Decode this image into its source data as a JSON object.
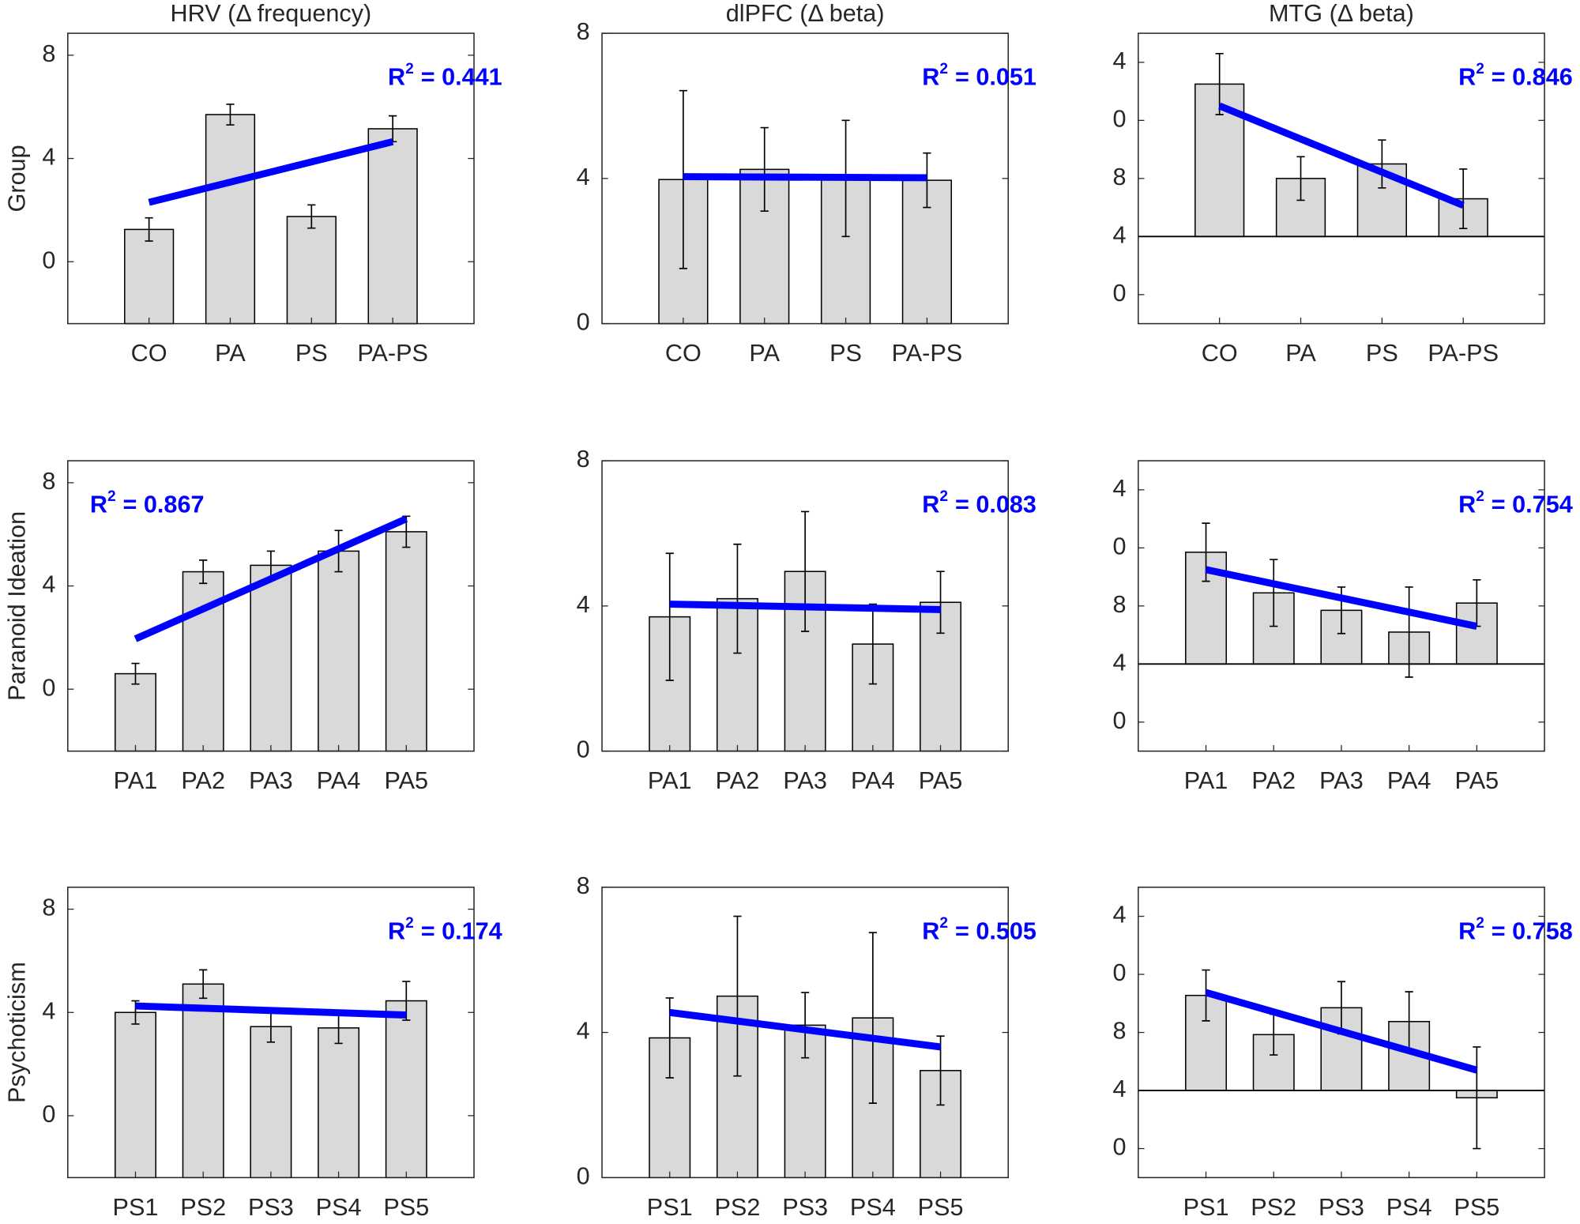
{
  "chart_data": [
    {
      "type": "bar",
      "title": "HRV (Δ frequency)",
      "ylabel": "Group",
      "categories": [
        "CO",
        "PA",
        "PS",
        "PA-PS"
      ],
      "values": [
        1.25,
        5.7,
        1.75,
        5.15
      ],
      "errors": [
        0.45,
        0.4,
        0.45,
        0.5
      ],
      "trend": [
        2.3,
        4.65
      ],
      "annotation": {
        "base": "R",
        "sup": "2",
        "rest": "= 0.441"
      },
      "annotation_loc": "upper right",
      "ylim": [
        -2.4,
        8.85
      ],
      "yticks": [
        0,
        4,
        8
      ],
      "color": "#d9d9d9",
      "line_color": "#0000ff"
    },
    {
      "type": "bar",
      "title": "dlPFC (Δ beta)",
      "categories": [
        "CO",
        "PA",
        "PS",
        "PA-PS"
      ],
      "values": [
        3.97,
        4.25,
        4.0,
        3.95
      ],
      "errors": [
        2.45,
        1.15,
        1.6,
        0.75
      ],
      "trend": [
        4.05,
        4.02
      ],
      "annotation": {
        "base": "R",
        "sup": "2",
        "rest": "= 0.051"
      },
      "annotation_loc": "upper right",
      "ylim": [
        0,
        8
      ],
      "yticks": [
        0,
        4,
        8
      ],
      "color": "#d9d9d9",
      "line_color": "#0000ff"
    },
    {
      "type": "bar",
      "title": "MTG (Δ beta)",
      "categories": [
        "CO",
        "PA",
        "PS",
        "PA-PS"
      ],
      "values": [
        14.5,
        8,
        9,
        6.6
      ],
      "errors": [
        2.1,
        1.5,
        1.65,
        2.05
      ],
      "trend": [
        13.0,
        6.15
      ],
      "annotation": {
        "base": "R",
        "sup": "2",
        "rest": "= 0.846"
      },
      "annotation_loc": "upper right",
      "ylim": [
        -2,
        18
      ],
      "yticks": [
        0,
        4,
        8,
        {
          "value": 12,
          "label": "0"
        },
        {
          "value": 16,
          "label": "4"
        }
      ],
      "baseline": 4,
      "color": "#d9d9d9",
      "line_color": "#0000ff"
    },
    {
      "type": "bar",
      "ylabel": "Paranoid Ideation",
      "categories": [
        "PA1",
        "PA2",
        "PA3",
        "PA4",
        "PA5"
      ],
      "values": [
        0.6,
        4.55,
        4.8,
        5.35,
        6.1
      ],
      "errors": [
        0.4,
        0.45,
        0.55,
        0.8,
        0.6
      ],
      "trend": [
        1.95,
        6.6
      ],
      "annotation": {
        "base": "R",
        "sup": "2",
        "rest": "= 0.867"
      },
      "annotation_loc": "upper left",
      "ylim": [
        -2.4,
        8.85
      ],
      "yticks": [
        0,
        4,
        8
      ],
      "color": "#d9d9d9",
      "line_color": "#0000ff"
    },
    {
      "type": "bar",
      "categories": [
        "PA1",
        "PA2",
        "PA3",
        "PA4",
        "PA5"
      ],
      "values": [
        3.7,
        4.2,
        4.95,
        2.95,
        4.1
      ],
      "errors": [
        1.75,
        1.5,
        1.65,
        1.1,
        0.85
      ],
      "trend": [
        4.05,
        3.9
      ],
      "annotation": {
        "base": "R",
        "sup": "2",
        "rest": "= 0.083"
      },
      "annotation_loc": "upper right",
      "ylim": [
        0,
        8
      ],
      "yticks": [
        0,
        4,
        8
      ],
      "color": "#d9d9d9",
      "line_color": "#0000ff"
    },
    {
      "type": "bar",
      "categories": [
        "PA1",
        "PA2",
        "PA3",
        "PA4",
        "PA5"
      ],
      "values": [
        11.7,
        8.9,
        7.7,
        6.2,
        8.2
      ],
      "errors": [
        2.0,
        2.3,
        1.6,
        3.1,
        1.6
      ],
      "trend": [
        10.5,
        6.6
      ],
      "annotation": {
        "base": "R",
        "sup": "2",
        "rest": "= 0.754"
      },
      "annotation_loc": "upper right",
      "ylim": [
        -2,
        18
      ],
      "yticks": [
        0,
        4,
        8,
        {
          "value": 12,
          "label": "0"
        },
        {
          "value": 16,
          "label": "4"
        }
      ],
      "baseline": 4,
      "color": "#d9d9d9",
      "line_color": "#0000ff"
    },
    {
      "type": "bar",
      "ylabel": "Psychoticism",
      "categories": [
        "PS1",
        "PS2",
        "PS3",
        "PS4",
        "PS5"
      ],
      "values": [
        4.0,
        5.1,
        3.45,
        3.4,
        4.45
      ],
      "errors": [
        0.45,
        0.55,
        0.6,
        0.6,
        0.75
      ],
      "trend": [
        4.25,
        3.9
      ],
      "annotation": {
        "base": "R",
        "sup": "2",
        "rest": "= 0.174"
      },
      "annotation_loc": "upper right",
      "ylim": [
        -2.4,
        8.85
      ],
      "yticks": [
        0,
        4,
        8
      ],
      "color": "#d9d9d9",
      "line_color": "#0000ff"
    },
    {
      "type": "bar",
      "categories": [
        "PS1",
        "PS2",
        "PS3",
        "PS4",
        "PS5"
      ],
      "values": [
        3.85,
        5.0,
        4.2,
        4.4,
        2.95
      ],
      "errors": [
        1.1,
        2.2,
        0.9,
        2.35,
        0.95
      ],
      "trend": [
        4.55,
        3.6
      ],
      "annotation": {
        "base": "R",
        "sup": "2",
        "rest": "= 0.505"
      },
      "annotation_loc": "upper right",
      "ylim": [
        0,
        8
      ],
      "yticks": [
        0,
        4,
        8
      ],
      "color": "#d9d9d9",
      "line_color": "#0000ff"
    },
    {
      "type": "bar",
      "categories": [
        "PS1",
        "PS2",
        "PS3",
        "PS4",
        "PS5"
      ],
      "values": [
        10.55,
        7.85,
        9.7,
        8.75,
        3.5
      ],
      "errors": [
        1.75,
        1.4,
        1.8,
        2.05,
        3.5
      ],
      "trend": [
        10.75,
        5.4
      ],
      "annotation": {
        "base": "R",
        "sup": "2",
        "rest": "= 0.758"
      },
      "annotation_loc": "upper right",
      "ylim": [
        -2,
        18
      ],
      "yticks": [
        0,
        4,
        8,
        {
          "value": 12,
          "label": "0"
        },
        {
          "value": 16,
          "label": "4"
        }
      ],
      "baseline": 4,
      "color": "#d9d9d9",
      "line_color": "#0000ff"
    }
  ]
}
